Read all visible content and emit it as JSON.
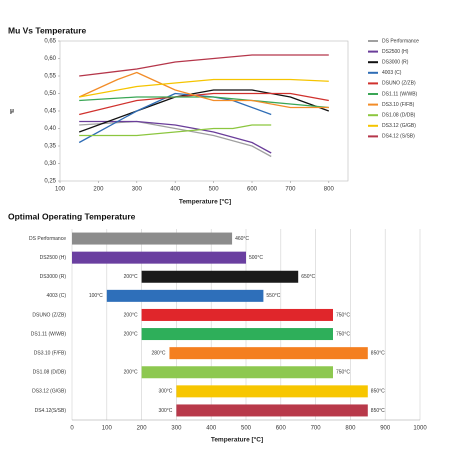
{
  "chart_data": [
    {
      "type": "line",
      "title": "Mu Vs Temperature",
      "xlabel": "Temperature [°C]",
      "ylabel": "μ",
      "xlim": [
        100,
        850
      ],
      "xticks": [
        100,
        200,
        300,
        400,
        500,
        600,
        700,
        800
      ],
      "ylim": [
        0.25,
        0.65
      ],
      "yticks": [
        {
          "value": 0.25,
          "label": "0,25"
        },
        {
          "value": 0.3,
          "label": "0,30"
        },
        {
          "value": 0.35,
          "label": "0,35"
        },
        {
          "value": 0.4,
          "label": "0,40"
        },
        {
          "value": 0.45,
          "label": "0,45"
        },
        {
          "value": 0.5,
          "label": "0,50"
        },
        {
          "value": 0.55,
          "label": "0,55"
        },
        {
          "value": 0.6,
          "label": "0,60"
        },
        {
          "value": 0.65,
          "label": "0,65"
        }
      ],
      "legend": "right",
      "series": [
        {
          "name": "DS Performance",
          "color": "#a0a0a0",
          "x": [
            150,
            300,
            400,
            500,
            600,
            650
          ],
          "values": [
            0.41,
            0.42,
            0.4,
            0.38,
            0.35,
            0.32
          ]
        },
        {
          "name": "DS2500 (H)",
          "color": "#6a3d9a",
          "x": [
            150,
            300,
            400,
            500,
            600,
            650
          ],
          "values": [
            0.42,
            0.42,
            0.41,
            0.39,
            0.36,
            0.33
          ]
        },
        {
          "name": "DS3000 (R)",
          "color": "#111111",
          "x": [
            150,
            300,
            400,
            500,
            600,
            700,
            800
          ],
          "values": [
            0.39,
            0.45,
            0.49,
            0.51,
            0.51,
            0.49,
            0.45
          ]
        },
        {
          "name": "4003 (C)",
          "color": "#2f6db5",
          "x": [
            150,
            300,
            400,
            500,
            550,
            650
          ],
          "values": [
            0.36,
            0.45,
            0.5,
            0.49,
            0.48,
            0.44
          ]
        },
        {
          "name": "DSUNO (Z/ZB)",
          "color": "#d0312d",
          "x": [
            150,
            300,
            400,
            500,
            600,
            700,
            800
          ],
          "values": [
            0.44,
            0.48,
            0.49,
            0.5,
            0.5,
            0.5,
            0.48
          ]
        },
        {
          "name": "DS1.11 (W/WB)",
          "color": "#3aa655",
          "x": [
            150,
            300,
            400,
            500,
            600,
            700,
            800
          ],
          "values": [
            0.48,
            0.49,
            0.49,
            0.49,
            0.48,
            0.47,
            0.46
          ]
        },
        {
          "name": "DS3.10 (F/FB)",
          "color": "#f28c28",
          "x": [
            150,
            250,
            300,
            400,
            500,
            600,
            700,
            800
          ],
          "values": [
            0.49,
            0.54,
            0.56,
            0.51,
            0.48,
            0.48,
            0.46,
            0.46
          ]
        },
        {
          "name": "DS1.08 (D/DB)",
          "color": "#8cc63f",
          "x": [
            150,
            300,
            400,
            500,
            550,
            600,
            650
          ],
          "values": [
            0.38,
            0.38,
            0.39,
            0.4,
            0.4,
            0.41,
            0.41
          ]
        },
        {
          "name": "DS3.12 (G/GB)",
          "color": "#f5c400",
          "x": [
            150,
            300,
            400,
            500,
            600,
            700,
            800
          ],
          "values": [
            0.49,
            0.52,
            0.53,
            0.54,
            0.54,
            0.54,
            0.535
          ]
        },
        {
          "name": "DS4.12 (S/SB)",
          "color": "#b5364a",
          "x": [
            150,
            300,
            400,
            500,
            600,
            700,
            800
          ],
          "values": [
            0.55,
            0.57,
            0.59,
            0.6,
            0.61,
            0.61,
            0.61
          ]
        }
      ]
    },
    {
      "type": "range_bar",
      "title": "Optimal Operating Temperature",
      "xlabel": "Temperature [°C]",
      "xlim": [
        0,
        1000
      ],
      "xticks": [
        0,
        100,
        200,
        300,
        400,
        500,
        600,
        700,
        800,
        900,
        1000
      ],
      "grid": true,
      "categories": [
        "DS Performance",
        "DS2500 (H)",
        "DS3000 (R)",
        "4003 (C)",
        "DSUNO (Z/ZB)",
        "DS1.11 (W/WB)",
        "DS3.10 (F/FB)",
        "DS1.08 (D/DB)",
        "DS3.12 (G/GB)",
        "DS4.12(S/SB)"
      ],
      "colors": [
        "#8c8c8c",
        "#6a3fa0",
        "#1a1a1a",
        "#2e6fba",
        "#e0262b",
        "#2eaf5a",
        "#f47f20",
        "#8dc850",
        "#f7c600",
        "#b8394a"
      ],
      "start": [
        0,
        0,
        200,
        100,
        200,
        200,
        280,
        200,
        300,
        300
      ],
      "start_labels": [
        null,
        null,
        "200°C",
        "100°C",
        "200°C",
        "200°C",
        "280°C",
        "200°C",
        "300°C",
        "300°C"
      ],
      "values": [
        460,
        500,
        650,
        550,
        750,
        750,
        850,
        750,
        850,
        850
      ],
      "value_labels": [
        "460°C",
        "500°C",
        "650°C",
        "550°C",
        "750°C",
        "750°C",
        "850°C",
        "750°C",
        "850°C",
        "850°C"
      ]
    }
  ]
}
